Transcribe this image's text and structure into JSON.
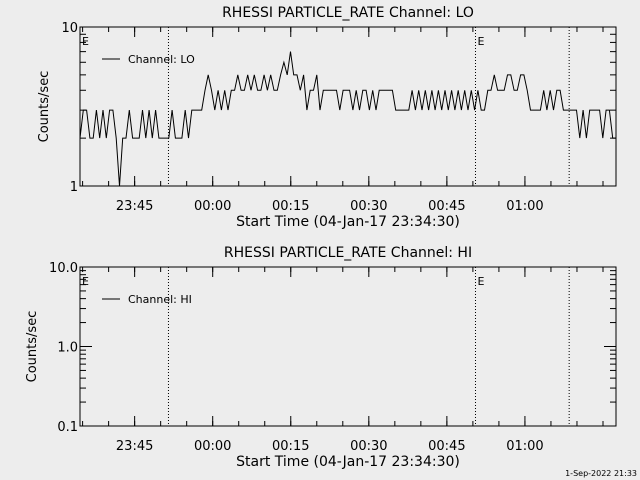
{
  "footer_timestamp": "1-Sep-2022 21:33",
  "chart_data": [
    {
      "type": "line",
      "title": "RHESSI PARTICLE_RATE Channel: LO",
      "xlabel": "Start Time (04-Jan-17 23:34:30)",
      "ylabel": "Counts/sec",
      "yscale": "log",
      "ylim": [
        1,
        10
      ],
      "ytick_labels": [
        "1",
        "10"
      ],
      "x_units": "minutes from start time",
      "xlim": [
        0,
        103
      ],
      "xticks": [
        {
          "x": 10.5,
          "label": "23:45"
        },
        {
          "x": 25.5,
          "label": "00:00"
        },
        {
          "x": 40.5,
          "label": "00:15"
        },
        {
          "x": 55.5,
          "label": "00:30"
        },
        {
          "x": 70.5,
          "label": "00:45"
        },
        {
          "x": 85.5,
          "label": "01:00"
        }
      ],
      "markers": [
        {
          "x": 17,
          "style": "dotted",
          "label": ""
        },
        {
          "x": 76,
          "style": "dotted",
          "label": "E"
        },
        {
          "x": 94,
          "style": "dotted",
          "label": ""
        }
      ],
      "edge_labels": [
        "E"
      ],
      "legend_position": "top-left",
      "series": [
        {
          "name": "Channel: LO",
          "values": [
            2,
            3,
            3,
            2,
            2,
            3,
            2,
            3,
            2,
            3,
            3,
            2,
            1,
            2,
            2,
            3,
            2,
            2,
            2,
            3,
            2,
            3,
            2,
            3,
            2,
            2,
            2,
            2,
            3,
            2,
            2,
            2,
            3,
            2,
            3,
            3,
            3,
            3,
            4,
            5,
            4,
            3,
            4,
            3,
            4,
            3,
            4,
            4,
            5,
            4,
            4,
            5,
            4,
            5,
            4,
            4,
            5,
            4,
            5,
            4,
            4,
            5,
            6,
            5,
            7,
            5,
            5,
            4,
            5,
            3,
            4,
            4,
            5,
            3,
            4,
            4,
            4,
            4,
            4,
            3,
            4,
            4,
            4,
            3,
            4,
            3,
            4,
            4,
            3,
            4,
            3,
            4,
            4,
            4,
            4,
            4,
            3,
            3,
            3,
            3,
            3,
            4,
            3,
            4,
            3,
            4,
            3,
            4,
            3,
            4,
            3,
            4,
            3,
            4,
            3,
            4,
            3,
            4,
            3,
            4,
            3,
            4,
            3,
            3,
            4,
            4,
            5,
            4,
            4,
            4,
            5,
            5,
            4,
            4,
            5,
            5,
            4,
            3,
            3,
            3,
            3,
            4,
            3,
            4,
            3,
            4,
            4,
            3,
            3,
            3,
            3,
            3,
            2,
            3,
            2,
            3,
            3,
            3,
            3,
            2,
            3,
            3,
            2,
            2
          ]
        }
      ]
    },
    {
      "type": "line",
      "title": "RHESSI PARTICLE_RATE Channel: HI",
      "xlabel": "Start Time (04-Jan-17 23:34:30)",
      "ylabel": "Counts/sec",
      "yscale": "log",
      "ylim": [
        0.1,
        10
      ],
      "ytick_labels": [
        "0.1",
        "1.0",
        "10.0"
      ],
      "x_units": "minutes from start time",
      "xlim": [
        0,
        103
      ],
      "xticks": [
        {
          "x": 10.5,
          "label": "23:45"
        },
        {
          "x": 25.5,
          "label": "00:00"
        },
        {
          "x": 40.5,
          "label": "00:15"
        },
        {
          "x": 55.5,
          "label": "00:30"
        },
        {
          "x": 70.5,
          "label": "00:45"
        },
        {
          "x": 85.5,
          "label": "01:00"
        }
      ],
      "markers": [
        {
          "x": 17,
          "style": "dotted",
          "label": ""
        },
        {
          "x": 76,
          "style": "dotted",
          "label": "E"
        },
        {
          "x": 94,
          "style": "dotted",
          "label": ""
        }
      ],
      "edge_labels": [
        "E"
      ],
      "legend_position": "top-left",
      "series": [
        {
          "name": "Channel: HI",
          "values": []
        }
      ]
    }
  ]
}
